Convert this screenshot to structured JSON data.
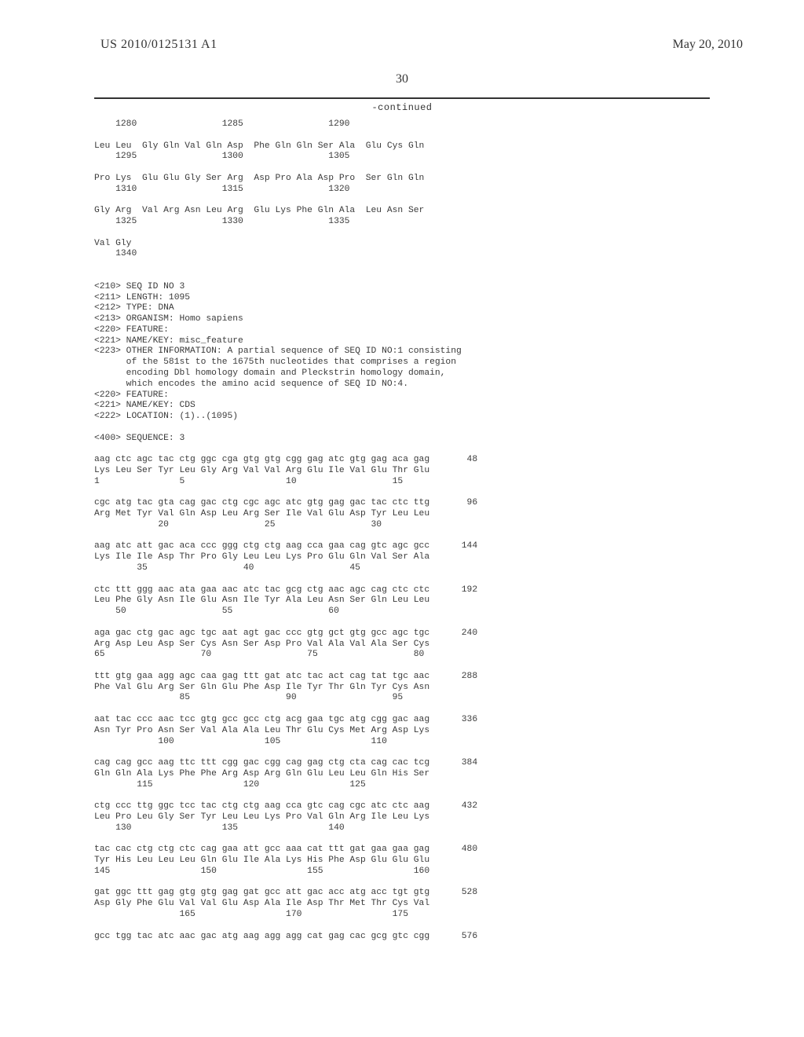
{
  "header": {
    "pub_number": "US 2010/0125131 A1",
    "pub_date": "May 20, 2010"
  },
  "page_number": "30",
  "continued_label": "-continued",
  "seq_text": "    1280                1285                1290\n\nLeu Leu  Gly Gln Val Gln Asp  Phe Gln Gln Ser Ala  Glu Cys Gln\n    1295                1300                1305\n\nPro Lys  Glu Glu Gly Ser Arg  Asp Pro Ala Asp Pro  Ser Gln Gln\n    1310                1315                1320\n\nGly Arg  Val Arg Asn Leu Arg  Glu Lys Phe Gln Ala  Leu Asn Ser\n    1325                1330                1335\n\nVal Gly\n    1340\n\n\n<210> SEQ ID NO 3\n<211> LENGTH: 1095\n<212> TYPE: DNA\n<213> ORGANISM: Homo sapiens\n<220> FEATURE:\n<221> NAME/KEY: misc_feature\n<223> OTHER INFORMATION: A partial sequence of SEQ ID NO:1 consisting\n      of the 581st to the 1675th nucleotides that comprises a region\n      encoding Dbl homology domain and Pleckstrin homology domain,\n      which encodes the amino acid sequence of SEQ ID NO:4.\n<220> FEATURE:\n<221> NAME/KEY: CDS\n<222> LOCATION: (1)..(1095)\n\n<400> SEQUENCE: 3\n\naag ctc agc tac ctg ggc cga gtg gtg cgg gag atc gtg gag aca gag       48\nLys Leu Ser Tyr Leu Gly Arg Val Val Arg Glu Ile Val Glu Thr Glu\n1               5                   10                  15\n\ncgc atg tac gta cag gac ctg cgc agc atc gtg gag gac tac ctc ttg       96\nArg Met Tyr Val Gln Asp Leu Arg Ser Ile Val Glu Asp Tyr Leu Leu\n            20                  25                  30\n\naag atc att gac aca ccc ggg ctg ctg aag cca gaa cag gtc agc gcc      144\nLys Ile Ile Asp Thr Pro Gly Leu Leu Lys Pro Glu Gln Val Ser Ala\n        35                  40                  45\n\nctc ttt ggg aac ata gaa aac atc tac gcg ctg aac agc cag ctc ctc      192\nLeu Phe Gly Asn Ile Glu Asn Ile Tyr Ala Leu Asn Ser Gln Leu Leu\n    50                  55                  60\n\naga gac ctg gac agc tgc aat agt gac ccc gtg gct gtg gcc agc tgc      240\nArg Asp Leu Asp Ser Cys Asn Ser Asp Pro Val Ala Val Ala Ser Cys\n65                  70                  75                  80\n\nttt gtg gaa agg agc caa gag ttt gat atc tac act cag tat tgc aac      288\nPhe Val Glu Arg Ser Gln Glu Phe Asp Ile Tyr Thr Gln Tyr Cys Asn\n                85                  90                  95\n\naat tac ccc aac tcc gtg gcc gcc ctg acg gaa tgc atg cgg gac aag      336\nAsn Tyr Pro Asn Ser Val Ala Ala Leu Thr Glu Cys Met Arg Asp Lys\n            100                 105                 110\n\ncag cag gcc aag ttc ttt cgg gac cgg cag gag ctg cta cag cac tcg      384\nGln Gln Ala Lys Phe Phe Arg Asp Arg Gln Glu Leu Leu Gln His Ser\n        115                 120                 125\n\nctg ccc ttg ggc tcc tac ctg ctg aag cca gtc cag cgc atc ctc aag      432\nLeu Pro Leu Gly Ser Tyr Leu Leu Lys Pro Val Gln Arg Ile Leu Lys\n    130                 135                 140\n\ntac cac ctg ctg ctc cag gaa att gcc aaa cat ttt gat gaa gaa gag      480\nTyr His Leu Leu Leu Gln Glu Ile Ala Lys His Phe Asp Glu Glu Glu\n145                 150                 155                 160\n\ngat ggc ttt gag gtg gtg gag gat gcc att gac acc atg acc tgt gtg      528\nAsp Gly Phe Glu Val Val Glu Asp Ala Ile Asp Thr Met Thr Cys Val\n                165                 170                 175\n\ngcc tgg tac atc aac gac atg aag agg agg cat gag cac gcg gtc cgg      576"
}
